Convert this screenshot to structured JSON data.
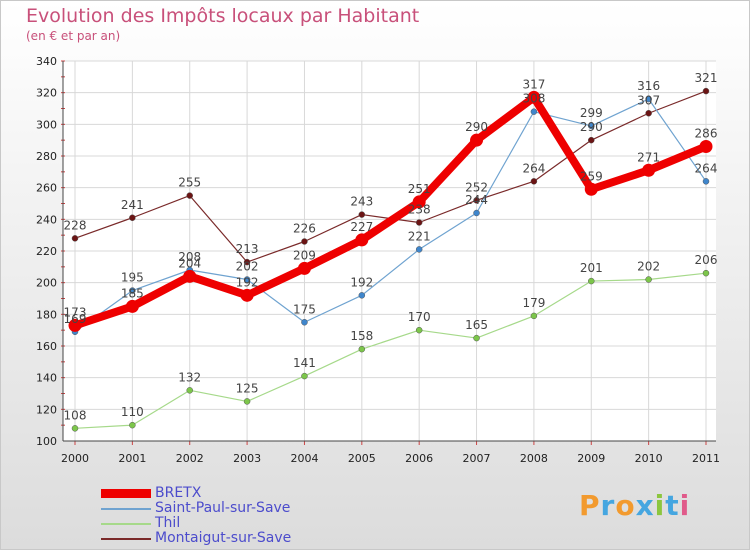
{
  "title": "Evolution des Impôts locaux par Habitant",
  "subtitle": "(en € et par an)",
  "logo": {
    "text": "Proxiti",
    "letters": [
      {
        "ch": "P",
        "color": "#f29a2e"
      },
      {
        "ch": "r",
        "color": "#45a6e0"
      },
      {
        "ch": "o",
        "color": "#f29a2e"
      },
      {
        "ch": "x",
        "color": "#45a6e0"
      },
      {
        "ch": "i",
        "color": "#8cc63e"
      },
      {
        "ch": "t",
        "color": "#45a6e0"
      },
      {
        "ch": "i",
        "color": "#e05a8a"
      }
    ]
  },
  "chart_data": {
    "type": "line",
    "title": "Evolution des Impôts locaux par Habitant",
    "subtitle": "(en € et par an)",
    "xlabel": "",
    "ylabel": "",
    "ylim": [
      100,
      340
    ],
    "yticks": [
      100,
      120,
      140,
      160,
      180,
      200,
      220,
      240,
      260,
      280,
      300,
      320,
      340
    ],
    "categories": [
      "2000",
      "2001",
      "2002",
      "2003",
      "2004",
      "2005",
      "2006",
      "2007",
      "2008",
      "2009",
      "2010",
      "2011"
    ],
    "legend_position": "bottom-left",
    "series": [
      {
        "name": "Montaigut-sur-Save",
        "color": "#7a2a2a",
        "marker": "#6b1414",
        "width": 1.2,
        "values": [
          228,
          241,
          255,
          213,
          226,
          243,
          238,
          252,
          264,
          290,
          307,
          321
        ]
      },
      {
        "name": "Thil",
        "color": "#a6d98a",
        "marker": "#7cc64a",
        "width": 1.2,
        "values": [
          108,
          110,
          132,
          125,
          141,
          158,
          170,
          165,
          179,
          201,
          202,
          206
        ]
      },
      {
        "name": "Saint-Paul-sur-Save",
        "color": "#6fa3d0",
        "marker": "#3f86cc",
        "width": 1.2,
        "values": [
          169,
          195,
          208,
          202,
          175,
          192,
          221,
          244,
          308,
          299,
          316,
          264
        ]
      },
      {
        "name": "BRETX",
        "color": "#ee0000",
        "marker": "#ee0000",
        "width": 8,
        "values": [
          173,
          185,
          204,
          192,
          209,
          227,
          251,
          290,
          317,
          259,
          271,
          286
        ]
      }
    ]
  },
  "legend": [
    {
      "name": "BRETX",
      "color": "#ee0000",
      "thickness": 9
    },
    {
      "name": "Saint-Paul-sur-Save",
      "color": "#6fa3d0",
      "thickness": 2
    },
    {
      "name": "Thil",
      "color": "#a6d98a",
      "thickness": 2
    },
    {
      "name": "Montaigut-sur-Save",
      "color": "#7a2a2a",
      "thickness": 2
    }
  ]
}
